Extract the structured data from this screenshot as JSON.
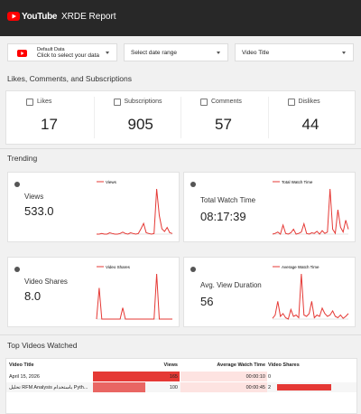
{
  "header": {
    "brand": "YouTube",
    "title": "XRDE Report"
  },
  "filters": {
    "data_source": {
      "title": "Default Data",
      "subtitle": "Click to select your data"
    },
    "date_range": "Select date range",
    "video_title": "Video Title"
  },
  "engagement": {
    "title": "Likes, Comments, and Subscriptions",
    "cards": [
      {
        "label": "Likes",
        "value": 17
      },
      {
        "label": "Subscriptions",
        "value": 905
      },
      {
        "label": "Comments",
        "value": 57
      },
      {
        "label": "Dislikes",
        "value": 44
      }
    ]
  },
  "trending": {
    "title": "Trending",
    "cards": [
      {
        "label": "Views",
        "value": "533.0",
        "chart": {
          "name": "Views",
          "values": [
            2,
            2,
            3,
            2,
            2,
            4,
            3,
            2,
            2,
            3,
            5,
            3,
            2,
            4,
            3,
            2,
            3,
            10,
            18,
            4,
            3,
            2,
            3,
            70,
            30,
            10,
            6,
            12,
            4,
            3
          ]
        }
      },
      {
        "label": "Total Watch Time",
        "value": "08:17:39",
        "chart": {
          "name": "Total Watch Time",
          "values": [
            5,
            6,
            8,
            5,
            18,
            6,
            5,
            7,
            12,
            5,
            6,
            8,
            20,
            6,
            5,
            7,
            6,
            9,
            5,
            10,
            6,
            8,
            70,
            12,
            6,
            40,
            15,
            8,
            25,
            12
          ]
        }
      },
      {
        "label": "Video Shares",
        "value": "8.0",
        "chart": {
          "name": "Video Shares",
          "values": [
            0,
            55,
            0,
            0,
            0,
            0,
            0,
            0,
            0,
            0,
            20,
            0,
            0,
            0,
            0,
            0,
            0,
            0,
            0,
            0,
            0,
            0,
            0,
            80,
            0,
            0,
            0,
            0,
            0,
            0
          ]
        }
      },
      {
        "label": "Avg. View Duration",
        "value": "56",
        "chart": {
          "name": "Average Watch Time",
          "values": [
            5,
            10,
            30,
            8,
            12,
            6,
            4,
            18,
            8,
            10,
            6,
            70,
            10,
            8,
            12,
            30,
            6,
            10,
            8,
            20,
            12,
            8,
            10,
            16,
            8,
            6,
            10,
            5,
            8,
            12
          ]
        }
      }
    ]
  },
  "top_videos": {
    "title": "Top Videos Watched",
    "columns": [
      "Video Title",
      "Views",
      "Average Watch Time",
      "Video Shares"
    ],
    "rows": [
      [
        "April 15, 2026",
        165,
        "00:00:10",
        0
      ],
      [
        "تحليل RFM Analysis باستخدام Pyth...",
        100,
        "00:00:45",
        2
      ]
    ]
  }
}
